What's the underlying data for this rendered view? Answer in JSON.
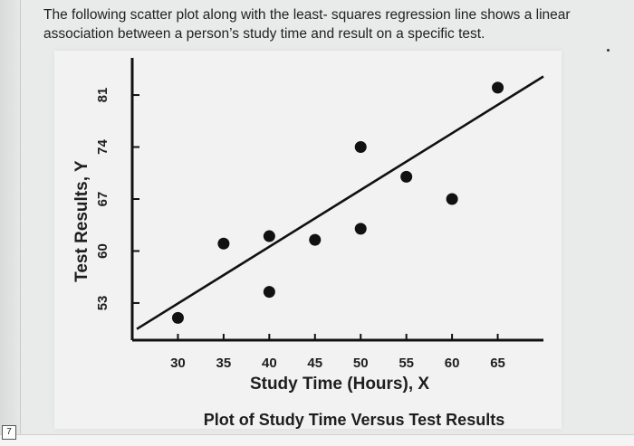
{
  "question": {
    "line1": "The following scatter plot along with the least- squares regression line shows a linear",
    "line2": "association between a person’s study time and result on a specific test."
  },
  "page_number": "7",
  "chart_data": {
    "type": "scatter",
    "title": "Plot of Study Time Versus Test Results",
    "xlabel": "Study Time (Hours), X",
    "ylabel": "Test Results, Y",
    "x_ticks": [
      30,
      35,
      40,
      45,
      50,
      55,
      60,
      65
    ],
    "y_ticks": [
      53,
      60,
      67,
      74,
      81
    ],
    "xlim": [
      25,
      70
    ],
    "ylim": [
      48,
      86
    ],
    "points": [
      {
        "x": 30,
        "y": 51
      },
      {
        "x": 35,
        "y": 61
      },
      {
        "x": 40,
        "y": 62
      },
      {
        "x": 40,
        "y": 54.5
      },
      {
        "x": 45,
        "y": 61.5
      },
      {
        "x": 50,
        "y": 63
      },
      {
        "x": 50,
        "y": 74
      },
      {
        "x": 55,
        "y": 70
      },
      {
        "x": 60,
        "y": 67
      },
      {
        "x": 65,
        "y": 82
      }
    ],
    "regression_line": {
      "x": [
        25.5,
        70
      ],
      "y": [
        49.5,
        83.5
      ]
    },
    "grid": false,
    "colors": {
      "marks": "#111111",
      "axis": "#111111",
      "background": "#f2f2f2"
    }
  }
}
